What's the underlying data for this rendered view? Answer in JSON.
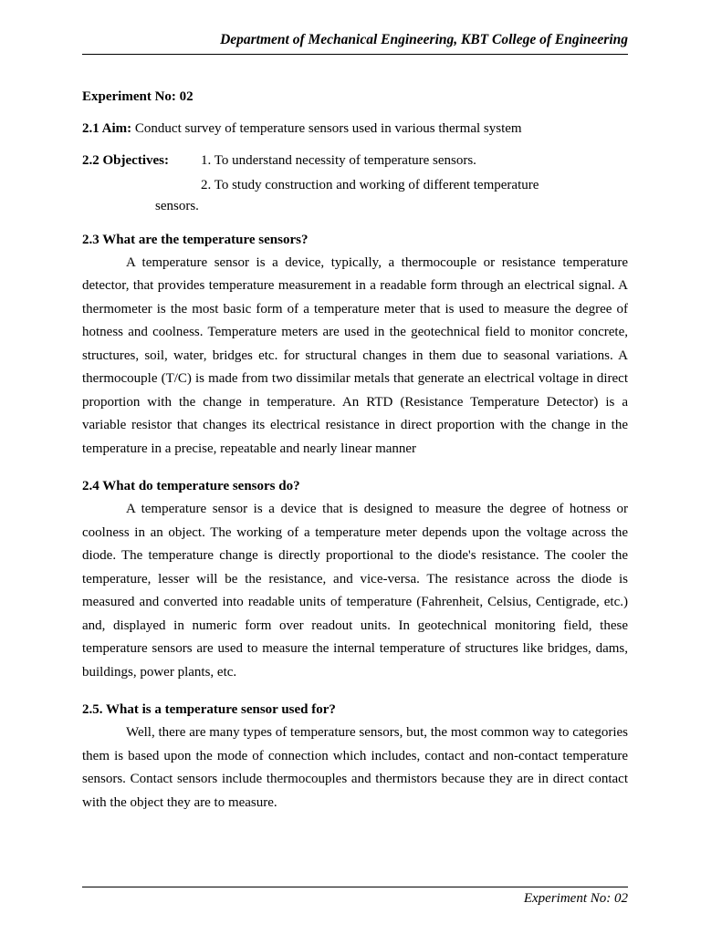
{
  "header": {
    "text": "Department of Mechanical Engineering, KBT College of Engineering"
  },
  "experiment": {
    "title": "Experiment No: 02"
  },
  "aim": {
    "label": "2.1 Aim:",
    "text": " Conduct survey of temperature sensors used in various thermal system"
  },
  "objectives": {
    "label": "2.2 Objectives:",
    "item1": "1. To understand necessity of temperature sensors.",
    "item2": "2. To study construction and working of different temperature",
    "item2_trail": "sensors."
  },
  "section23": {
    "title": "2.3 What are the temperature sensors?",
    "body": "A temperature sensor is a device, typically, a thermocouple or resistance temperature detector, that provides temperature measurement in a readable form through an electrical signal. A thermometer is the most basic form of a temperature meter that is used to measure the degree of hotness and coolness. Temperature meters are used in the geotechnical field to monitor concrete, structures, soil, water, bridges etc. for structural changes in them due to seasonal variations. A thermocouple (T/C) is made from two dissimilar metals that generate an electrical voltage in direct proportion with the change in temperature. An RTD (Resistance Temperature Detector) is a variable resistor that changes its electrical resistance in direct proportion with the change in the temperature in a precise, repeatable and nearly linear manner"
  },
  "section24": {
    "title": "2.4 What do temperature sensors do?",
    "body": "A temperature sensor is a device that is designed to measure the degree of hotness or coolness in an object. The working of a temperature meter depends upon the voltage across the diode. The temperature change is directly proportional to the diode's resistance. The cooler the temperature, lesser will be the resistance, and vice-versa. The resistance across the diode is measured and converted into readable units of temperature (Fahrenheit, Celsius, Centigrade, etc.) and, displayed in numeric form over readout units. In geotechnical monitoring field, these temperature sensors are used to measure the internal temperature of structures like bridges, dams, buildings, power plants, etc."
  },
  "section25": {
    "title": "2.5. What is a temperature sensor used for?",
    "body": "Well, there are many types of temperature sensors, but, the most common way to categories them is based upon the mode of connection which includes, contact and non-contact temperature sensors. Contact sensors include thermocouples and thermistors because they are in direct contact with the object they are to measure."
  },
  "footer": {
    "text": "Experiment No: 02"
  }
}
